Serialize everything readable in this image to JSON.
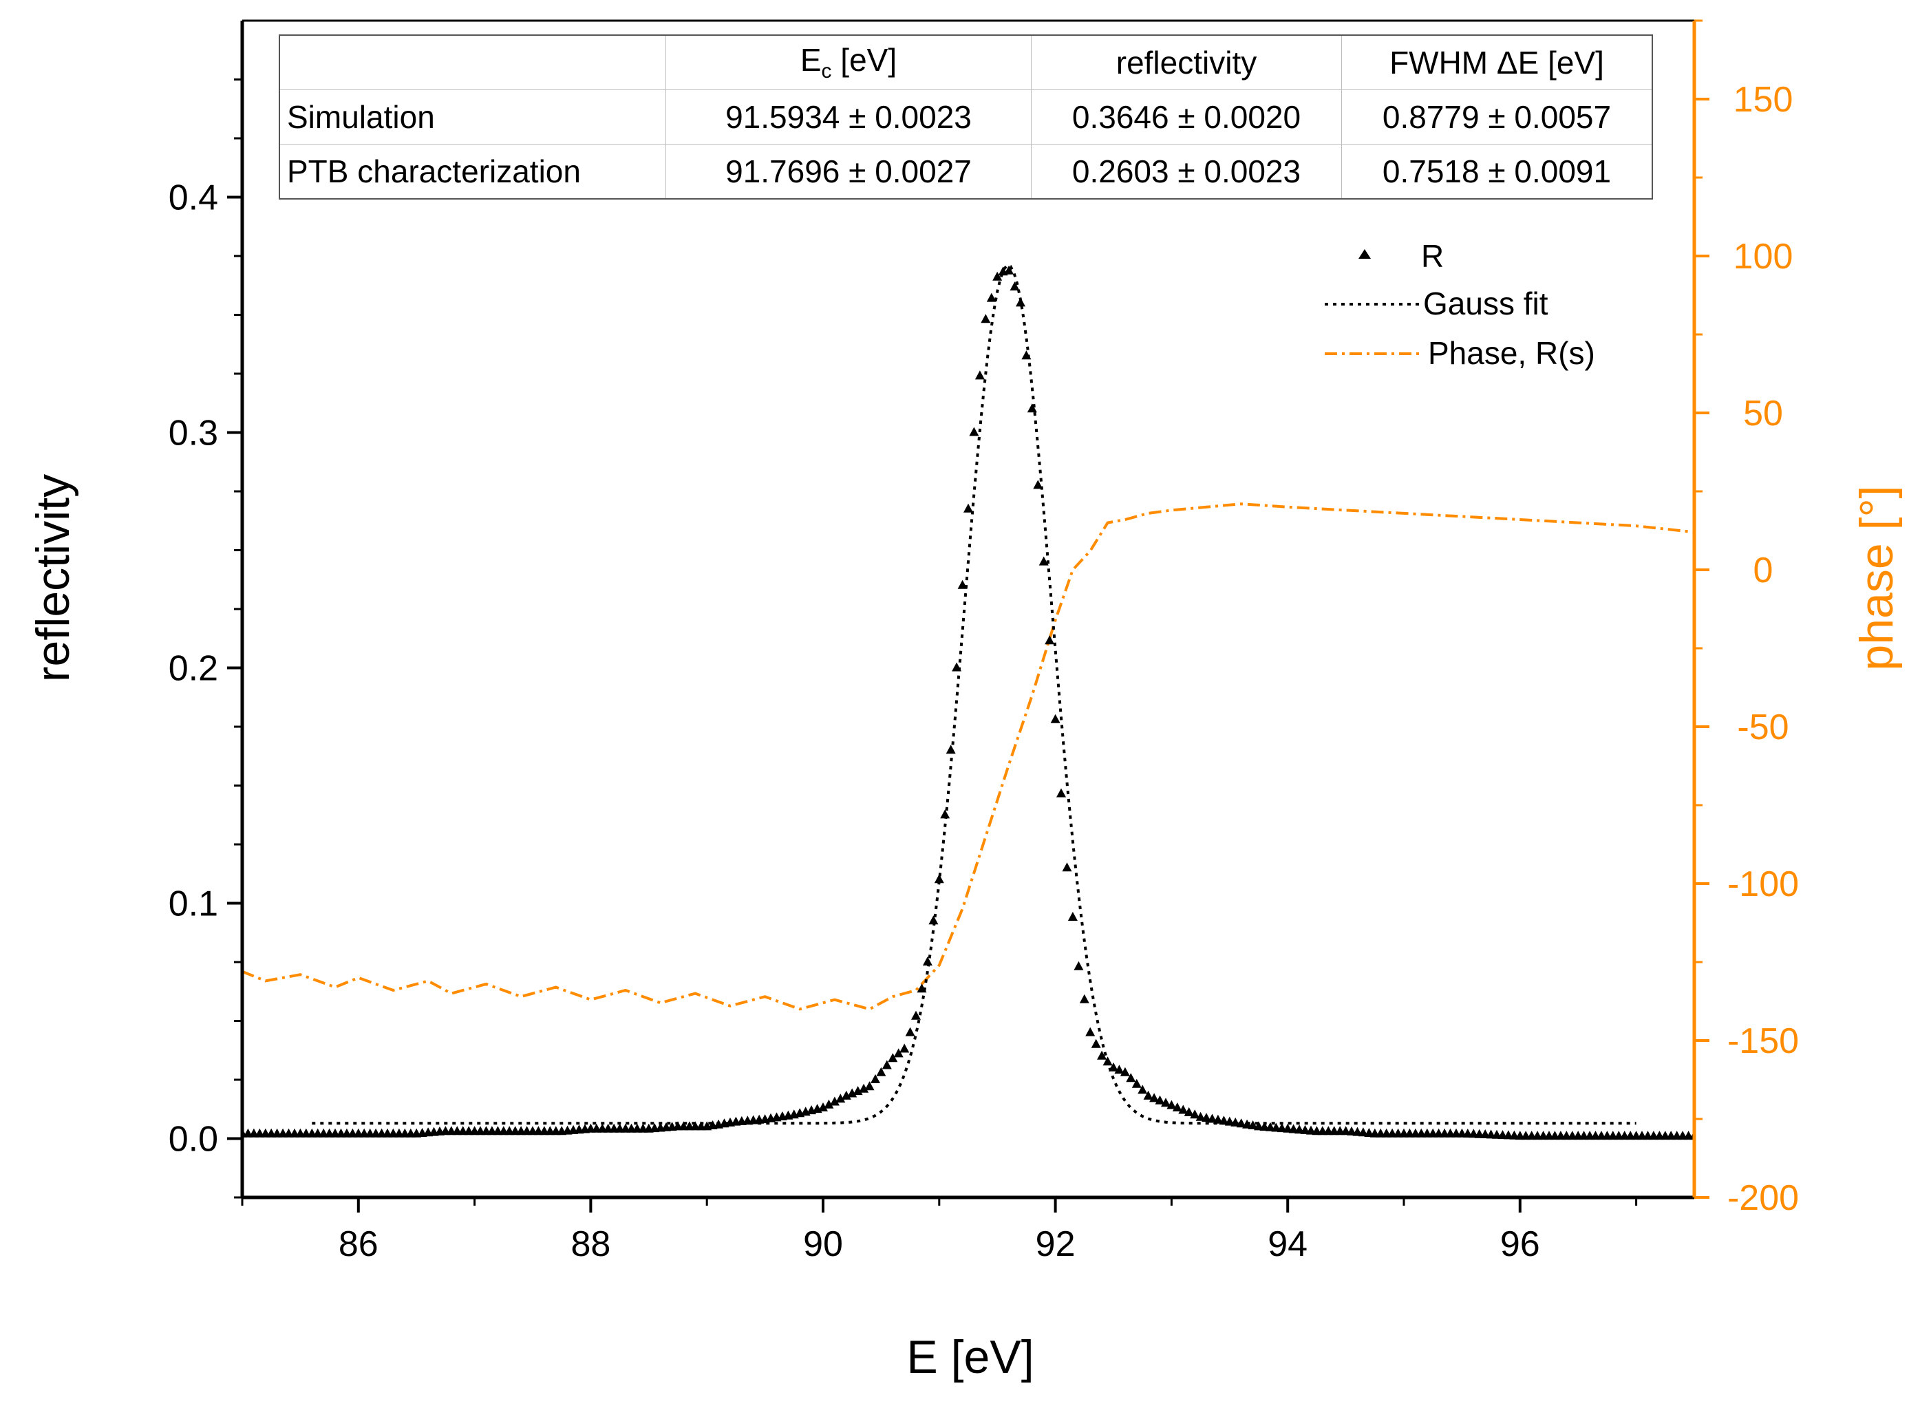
{
  "chart_data": {
    "type": "scatter",
    "xlabel": "E [eV]",
    "ylabel": "reflectivity",
    "y2label": "phase [°]",
    "xlim": [
      85.0,
      97.5
    ],
    "ylim": [
      -0.025,
      0.475
    ],
    "y2lim": [
      -200,
      175
    ],
    "xticks": [
      86,
      88,
      90,
      92,
      94,
      96
    ],
    "xtick_labels": [
      "86",
      "88",
      "90",
      "92",
      "94",
      "96"
    ],
    "yticks": [
      0.0,
      0.1,
      0.2,
      0.3,
      0.4
    ],
    "ytick_labels": [
      "0.0",
      "0.1",
      "0.2",
      "0.3",
      "0.4"
    ],
    "y2ticks": [
      -200,
      -150,
      -100,
      -50,
      0,
      50,
      100,
      150
    ],
    "y2tick_labels": [
      "-200",
      "-150",
      "-100",
      "-50",
      "0",
      "50",
      "100",
      "150"
    ],
    "colors": {
      "black": "#000000",
      "orange": "#ff8c00"
    },
    "legend": {
      "position": "top-right",
      "entries": [
        "R",
        "Gauss fit",
        "Phase, R(s)"
      ]
    },
    "series": [
      {
        "name": "R",
        "style": "triangle markers",
        "axis": "left",
        "x": [
          85.0,
          85.25,
          85.5,
          85.75,
          86.0,
          86.25,
          86.5,
          86.75,
          87.0,
          87.25,
          87.5,
          87.75,
          88.0,
          88.25,
          88.5,
          88.75,
          89.0,
          89.25,
          89.5,
          89.75,
          90.0,
          90.2,
          90.4,
          90.6,
          90.7,
          90.8,
          90.9,
          91.0,
          91.1,
          91.2,
          91.3,
          91.4,
          91.5,
          91.59,
          91.7,
          91.8,
          91.9,
          92.0,
          92.1,
          92.2,
          92.3,
          92.4,
          92.5,
          92.6,
          92.8,
          93.0,
          93.25,
          93.5,
          93.75,
          94.0,
          94.25,
          94.5,
          94.75,
          95.0,
          95.5,
          96.0,
          96.5,
          97.0,
          97.5
        ],
        "y": [
          0.002,
          0.002,
          0.002,
          0.002,
          0.002,
          0.002,
          0.002,
          0.003,
          0.003,
          0.003,
          0.003,
          0.003,
          0.004,
          0.004,
          0.004,
          0.005,
          0.005,
          0.007,
          0.008,
          0.01,
          0.013,
          0.018,
          0.022,
          0.034,
          0.038,
          0.052,
          0.075,
          0.11,
          0.165,
          0.235,
          0.3,
          0.348,
          0.366,
          0.37,
          0.355,
          0.31,
          0.245,
          0.178,
          0.115,
          0.073,
          0.045,
          0.035,
          0.03,
          0.028,
          0.018,
          0.014,
          0.009,
          0.007,
          0.005,
          0.004,
          0.003,
          0.003,
          0.002,
          0.002,
          0.002,
          0.001,
          0.001,
          0.001,
          0.001
        ]
      },
      {
        "name": "Gauss fit",
        "style": "dotted line",
        "axis": "left",
        "baseline": 0.0065,
        "center": 91.5934,
        "amplitude": 0.3646,
        "fwhm": 0.8779,
        "x_range": [
          85.6,
          97.0
        ]
      },
      {
        "name": "Phase, R(s)",
        "style": "dash-dot line",
        "axis": "right",
        "x": [
          85.0,
          85.2,
          85.5,
          85.8,
          86.0,
          86.3,
          86.6,
          86.8,
          87.1,
          87.4,
          87.7,
          88.0,
          88.3,
          88.6,
          88.9,
          89.2,
          89.5,
          89.8,
          90.1,
          90.4,
          90.6,
          90.8,
          91.0,
          91.2,
          91.4,
          91.6,
          91.8,
          92.0,
          92.15,
          92.3,
          92.45,
          92.6,
          92.8,
          93.0,
          93.3,
          93.6,
          94.0,
          94.5,
          95.0,
          95.5,
          96.0,
          96.5,
          97.0,
          97.5
        ],
        "y": [
          -128,
          -131,
          -129,
          -133,
          -130,
          -134,
          -131,
          -135,
          -132,
          -136,
          -133,
          -137,
          -134,
          -138,
          -135,
          -139,
          -136,
          -140,
          -137,
          -140,
          -136,
          -134,
          -126,
          -108,
          -85,
          -62,
          -40,
          -16,
          0,
          6,
          15,
          16,
          18,
          19,
          20,
          21,
          20,
          19,
          18,
          17,
          16,
          15,
          14,
          12
        ]
      }
    ]
  },
  "table": {
    "headers": [
      "",
      "E",
      "c",
      " [eV]",
      "reflectivity",
      "FWHM ΔE [eV]"
    ],
    "rows": [
      {
        "label": "Simulation",
        "ec": "91.5934 ± 0.0023",
        "refl": "0.3646 ± 0.0020",
        "fwhm": "0.8779 ± 0.0057"
      },
      {
        "label": "PTB characterization",
        "ec": "91.7696 ± 0.0027",
        "refl": "0.2603 ± 0.0023",
        "fwhm": "0.7518 ± 0.0091"
      }
    ]
  }
}
